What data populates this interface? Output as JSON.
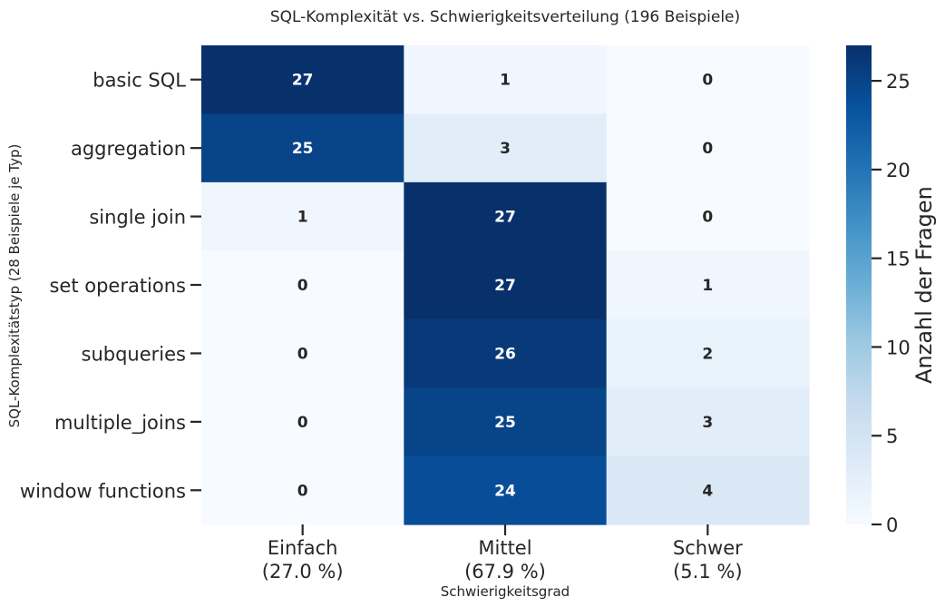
{
  "chart_data": {
    "type": "heatmap",
    "title": "SQL-Komplexität vs. Schwierigkeitsverteilung (196 Beispiele)",
    "xlabel": "Schwierigkeitsgrad",
    "ylabel": "SQL-Komplexitätstyp (28 Beispiele je Typ)",
    "x_categories": [
      {
        "name": "Einfach",
        "pct": "(27.0 %)"
      },
      {
        "name": "Mittel",
        "pct": "(67.9 %)"
      },
      {
        "name": "Schwer",
        "pct": "(5.1 %)"
      }
    ],
    "y_categories": [
      "basic SQL",
      "aggregation",
      "single join",
      "set operations",
      "subqueries",
      "multiple_joins",
      "window functions"
    ],
    "values": [
      [
        27,
        1,
        0
      ],
      [
        25,
        3,
        0
      ],
      [
        1,
        27,
        0
      ],
      [
        0,
        27,
        1
      ],
      [
        0,
        26,
        2
      ],
      [
        0,
        25,
        3
      ],
      [
        0,
        24,
        4
      ]
    ],
    "colormap": "Blues",
    "vmin": 0,
    "vmax": 27,
    "colorbar": {
      "label": "Anzahl der Fragen",
      "ticks": [
        0,
        5,
        10,
        15,
        20,
        25
      ]
    }
  }
}
